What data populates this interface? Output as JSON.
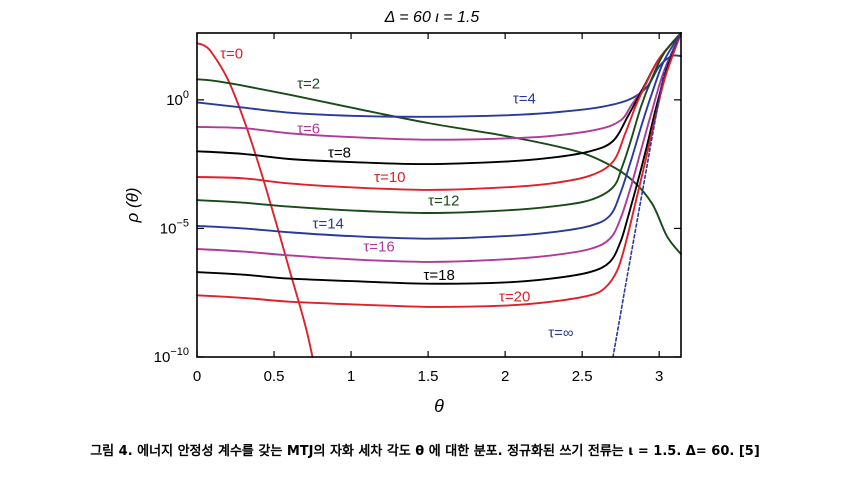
{
  "chart_data": {
    "type": "line",
    "title": "Δ = 60  ι = 1.5",
    "xlabel": "θ",
    "ylabel": "ρ (θ)",
    "xlim": [
      0,
      3.1416
    ],
    "ylim_log10": [
      -10,
      2.6
    ],
    "xticks": [
      {
        "value": 0,
        "label": "0"
      },
      {
        "value": 0.5,
        "label": "0.5"
      },
      {
        "value": 1,
        "label": "1"
      },
      {
        "value": 1.5,
        "label": "1.5"
      },
      {
        "value": 2,
        "label": "2"
      },
      {
        "value": 2.5,
        "label": "2.5"
      },
      {
        "value": 3,
        "label": "3"
      }
    ],
    "yticks": [
      {
        "value": 0,
        "base": "10",
        "exp": "0"
      },
      {
        "value": -5,
        "base": "10",
        "exp": "−5"
      },
      {
        "value": -10,
        "base": "10",
        "exp": "−10"
      }
    ],
    "series": [
      {
        "name": "τ=0",
        "color": "#e0202a",
        "dash": false,
        "label_at": [
          0.15,
          1.6
        ],
        "points": [
          [
            0,
            2.2
          ],
          [
            0.05,
            2.1
          ],
          [
            0.1,
            1.8
          ],
          [
            0.2,
            0.8
          ],
          [
            0.3,
            -0.7
          ],
          [
            0.4,
            -2.5
          ],
          [
            0.5,
            -4.5
          ],
          [
            0.6,
            -6.6
          ],
          [
            0.7,
            -8.7
          ],
          [
            0.75,
            -10
          ]
        ]
      },
      {
        "name": "τ=2",
        "color": "#1a4a1a",
        "dash": false,
        "label_at": [
          0.65,
          0.45
        ],
        "points": [
          [
            0,
            0.8
          ],
          [
            0.1,
            0.75
          ],
          [
            0.3,
            0.55
          ],
          [
            0.6,
            0.2
          ],
          [
            1.0,
            -0.3
          ],
          [
            1.5,
            -0.9
          ],
          [
            2.0,
            -1.4
          ],
          [
            2.4,
            -1.9
          ],
          [
            2.6,
            -2.3
          ],
          [
            2.8,
            -3.0
          ],
          [
            2.95,
            -4.0
          ],
          [
            3.05,
            -5.3
          ],
          [
            3.1416,
            -6.0
          ]
        ]
      },
      {
        "name": "τ=4",
        "color": "#2a3a9a",
        "dash": false,
        "label_at": [
          2.05,
          -0.15
        ],
        "points": [
          [
            0,
            -0.1
          ],
          [
            0.3,
            -0.3
          ],
          [
            0.6,
            -0.5
          ],
          [
            1.0,
            -0.62
          ],
          [
            1.5,
            -0.66
          ],
          [
            2.0,
            -0.6
          ],
          [
            2.3,
            -0.5
          ],
          [
            2.6,
            -0.3
          ],
          [
            2.8,
            0.0
          ],
          [
            2.92,
            0.5
          ],
          [
            3.0,
            1.3
          ],
          [
            3.08,
            1.7
          ],
          [
            3.1416,
            1.7
          ]
        ]
      },
      {
        "name": "τ=6",
        "color": "#b03a9a",
        "dash": false,
        "label_at": [
          0.65,
          -1.3
        ],
        "points": [
          [
            0,
            -1.05
          ],
          [
            0.3,
            -1.1
          ],
          [
            0.6,
            -1.3
          ],
          [
            1.0,
            -1.45
          ],
          [
            1.5,
            -1.55
          ],
          [
            2.0,
            -1.5
          ],
          [
            2.3,
            -1.4
          ],
          [
            2.6,
            -1.15
          ],
          [
            2.75,
            -0.8
          ],
          [
            2.82,
            -0.2
          ],
          [
            2.9,
            0.5
          ],
          [
            3.0,
            1.6
          ],
          [
            3.1416,
            2.6
          ]
        ]
      },
      {
        "name": "τ=8",
        "color": "#000000",
        "dash": false,
        "label_at": [
          0.85,
          -2.25
        ],
        "points": [
          [
            0,
            -2.0
          ],
          [
            0.3,
            -2.1
          ],
          [
            0.6,
            -2.3
          ],
          [
            1.0,
            -2.42
          ],
          [
            1.5,
            -2.5
          ],
          [
            2.0,
            -2.4
          ],
          [
            2.3,
            -2.25
          ],
          [
            2.55,
            -2.0
          ],
          [
            2.7,
            -1.6
          ],
          [
            2.8,
            -0.6
          ],
          [
            2.9,
            0.5
          ],
          [
            3.0,
            1.6
          ],
          [
            3.1416,
            2.6
          ]
        ]
      },
      {
        "name": "τ=10",
        "color": "#e0202a",
        "dash": false,
        "label_at": [
          1.15,
          -3.2
        ],
        "points": [
          [
            0,
            -3.0
          ],
          [
            0.3,
            -3.05
          ],
          [
            0.6,
            -3.25
          ],
          [
            1.0,
            -3.4
          ],
          [
            1.5,
            -3.5
          ],
          [
            2.0,
            -3.4
          ],
          [
            2.3,
            -3.25
          ],
          [
            2.55,
            -2.95
          ],
          [
            2.7,
            -2.4
          ],
          [
            2.78,
            -1.3
          ],
          [
            2.85,
            -0.2
          ],
          [
            2.92,
            0.7
          ],
          [
            3.0,
            1.6
          ],
          [
            3.1416,
            2.6
          ]
        ]
      },
      {
        "name": "τ=12",
        "color": "#1a4a1a",
        "dash": false,
        "label_at": [
          1.5,
          -4.1
        ],
        "points": [
          [
            0,
            -3.9
          ],
          [
            0.3,
            -4.0
          ],
          [
            0.6,
            -4.15
          ],
          [
            1.0,
            -4.3
          ],
          [
            1.5,
            -4.4
          ],
          [
            2.0,
            -4.3
          ],
          [
            2.3,
            -4.15
          ],
          [
            2.55,
            -3.9
          ],
          [
            2.7,
            -3.4
          ],
          [
            2.76,
            -2.6
          ],
          [
            2.82,
            -1.5
          ],
          [
            2.88,
            -0.3
          ],
          [
            2.95,
            0.8
          ],
          [
            3.03,
            1.8
          ],
          [
            3.1416,
            2.6
          ]
        ]
      },
      {
        "name": "τ=14",
        "color": "#2a3a9a",
        "dash": false,
        "label_at": [
          0.75,
          -5.0
        ],
        "points": [
          [
            0,
            -4.9
          ],
          [
            0.3,
            -5.0
          ],
          [
            0.6,
            -5.15
          ],
          [
            1.0,
            -5.3
          ],
          [
            1.5,
            -5.4
          ],
          [
            2.0,
            -5.3
          ],
          [
            2.3,
            -5.15
          ],
          [
            2.55,
            -4.9
          ],
          [
            2.68,
            -4.5
          ],
          [
            2.75,
            -3.6
          ],
          [
            2.82,
            -2.3
          ],
          [
            2.88,
            -1.1
          ],
          [
            2.95,
            0.2
          ],
          [
            3.03,
            1.5
          ],
          [
            3.1416,
            2.6
          ]
        ]
      },
      {
        "name": "τ=16",
        "color": "#b03a9a",
        "dash": false,
        "label_at": [
          1.08,
          -5.9
        ],
        "points": [
          [
            0,
            -5.8
          ],
          [
            0.3,
            -5.9
          ],
          [
            0.6,
            -6.05
          ],
          [
            1.0,
            -6.2
          ],
          [
            1.5,
            -6.3
          ],
          [
            2.0,
            -6.2
          ],
          [
            2.3,
            -6.05
          ],
          [
            2.55,
            -5.8
          ],
          [
            2.68,
            -5.4
          ],
          [
            2.75,
            -4.6
          ],
          [
            2.82,
            -3.3
          ],
          [
            2.88,
            -2.0
          ],
          [
            2.95,
            -0.5
          ],
          [
            3.03,
            1.1
          ],
          [
            3.1416,
            2.6
          ]
        ]
      },
      {
        "name": "τ=18",
        "color": "#000000",
        "dash": false,
        "label_at": [
          1.47,
          -7.0
        ],
        "points": [
          [
            0,
            -6.7
          ],
          [
            0.3,
            -6.8
          ],
          [
            0.6,
            -6.95
          ],
          [
            1.0,
            -7.05
          ],
          [
            1.5,
            -7.15
          ],
          [
            2.0,
            -7.1
          ],
          [
            2.3,
            -6.95
          ],
          [
            2.55,
            -6.7
          ],
          [
            2.68,
            -6.3
          ],
          [
            2.75,
            -5.5
          ],
          [
            2.8,
            -4.5
          ],
          [
            2.86,
            -3.2
          ],
          [
            2.92,
            -1.8
          ],
          [
            2.98,
            -0.3
          ],
          [
            3.05,
            1.2
          ],
          [
            3.1416,
            2.6
          ]
        ]
      },
      {
        "name": "τ=20",
        "color": "#e0202a",
        "dash": false,
        "label_at": [
          1.96,
          -7.85
        ],
        "points": [
          [
            0,
            -7.6
          ],
          [
            0.3,
            -7.7
          ],
          [
            0.6,
            -7.85
          ],
          [
            1.0,
            -7.95
          ],
          [
            1.5,
            -8.05
          ],
          [
            2.0,
            -8.0
          ],
          [
            2.3,
            -7.85
          ],
          [
            2.55,
            -7.6
          ],
          [
            2.65,
            -7.3
          ],
          [
            2.73,
            -6.6
          ],
          [
            2.79,
            -5.4
          ],
          [
            2.85,
            -3.9
          ],
          [
            2.91,
            -2.4
          ],
          [
            2.97,
            -0.8
          ],
          [
            3.04,
            0.9
          ],
          [
            3.1416,
            2.6
          ]
        ]
      },
      {
        "name": "τ=∞",
        "color": "#2a3a9a",
        "dash": true,
        "label_at": [
          2.28,
          -9.25
        ],
        "points": [
          [
            2.7,
            -10
          ],
          [
            2.75,
            -8.3
          ],
          [
            2.8,
            -6.6
          ],
          [
            2.86,
            -4.6
          ],
          [
            2.92,
            -2.6
          ],
          [
            2.98,
            -0.6
          ],
          [
            3.04,
            1.2
          ],
          [
            3.1416,
            2.6
          ]
        ]
      }
    ]
  },
  "caption": "그림 4. 에너지 안정성 계수를 갖는 MTJ의 자화 세차 각도 θ 에 대한 분포. 정규화된 쓰기 전류는 ι = 1.5. Δ= 60. [5]"
}
